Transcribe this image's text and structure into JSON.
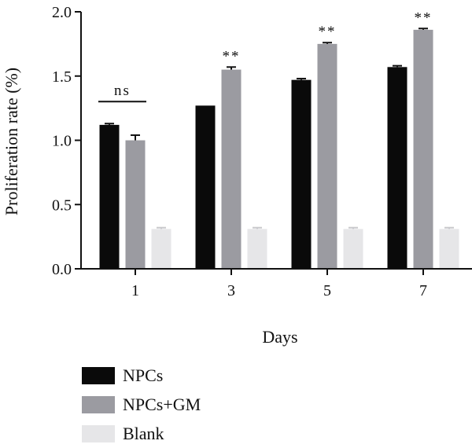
{
  "chart_data": {
    "type": "bar",
    "xlabel": "Days",
    "ylabel": "Proliferation rate (%)",
    "ylim": [
      0,
      2.0
    ],
    "yticks": [
      "0.0",
      "0.5",
      "1.0",
      "1.5",
      "2.0"
    ],
    "categories": [
      "1",
      "3",
      "5",
      "7"
    ],
    "series": [
      {
        "name": "NPCs",
        "color": "#0a0a0a",
        "values": [
          1.12,
          1.27,
          1.47,
          1.57
        ],
        "errors": [
          0.01,
          0.0,
          0.01,
          0.01
        ]
      },
      {
        "name": "NPCs+GM",
        "color": "#9b9ba1",
        "values": [
          1.0,
          1.55,
          1.75,
          1.86
        ],
        "errors": [
          0.04,
          0.02,
          0.01,
          0.01
        ]
      },
      {
        "name": "Blank",
        "color": "#e6e6e8",
        "values": [
          0.31,
          0.31,
          0.31,
          0.31
        ],
        "errors": [
          0.01,
          0.01,
          0.01,
          0.01
        ]
      }
    ],
    "annotations": [
      "ns",
      "**",
      "**",
      "**"
    ],
    "grid": false,
    "legend_position": "bottom-left"
  }
}
